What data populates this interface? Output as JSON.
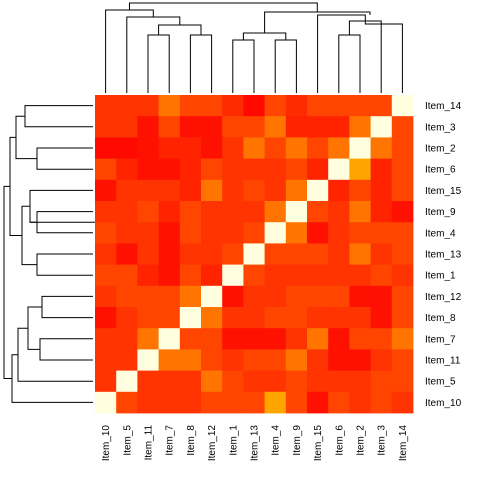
{
  "chart_data": {
    "type": "heatmap",
    "title": "",
    "xlabel": "",
    "ylabel": "",
    "legend": "none",
    "grid": false,
    "col_labels": [
      "Item_10",
      "Item_5",
      "Item_11",
      "Item_7",
      "Item_8",
      "Item_12",
      "Item_1",
      "Item_13",
      "Item_4",
      "Item_9",
      "Item_15",
      "Item_6",
      "Item_2",
      "Item_3",
      "Item_14"
    ],
    "row_labels": [
      "Item_14",
      "Item_3",
      "Item_2",
      "Item_6",
      "Item_15",
      "Item_9",
      "Item_4",
      "Item_13",
      "Item_1",
      "Item_12",
      "Item_8",
      "Item_7",
      "Item_11",
      "Item_5",
      "Item_10"
    ],
    "value_range": [
      0,
      1
    ],
    "values": [
      [
        0.3,
        0.3,
        0.3,
        0.5,
        0.4,
        0.4,
        0.25,
        0.05,
        0.4,
        0.25,
        0.4,
        0.4,
        0.4,
        0.4,
        1.0
      ],
      [
        0.3,
        0.3,
        0.1,
        0.4,
        0.1,
        0.1,
        0.4,
        0.4,
        0.5,
        0.2,
        0.2,
        0.2,
        0.5,
        1.0,
        0.4
      ],
      [
        0.05,
        0.05,
        0.1,
        0.2,
        0.2,
        0.1,
        0.3,
        0.5,
        0.4,
        0.5,
        0.4,
        0.5,
        1.0,
        0.5,
        0.4
      ],
      [
        0.4,
        0.2,
        0.1,
        0.1,
        0.2,
        0.4,
        0.3,
        0.3,
        0.3,
        0.4,
        0.2,
        1.0,
        0.6,
        0.2,
        0.4
      ],
      [
        0.1,
        0.3,
        0.3,
        0.3,
        0.2,
        0.5,
        0.3,
        0.4,
        0.3,
        0.5,
        1.0,
        0.2,
        0.4,
        0.2,
        0.4
      ],
      [
        0.3,
        0.3,
        0.4,
        0.2,
        0.4,
        0.3,
        0.3,
        0.3,
        0.5,
        1.0,
        0.4,
        0.3,
        0.5,
        0.2,
        0.1
      ],
      [
        0.4,
        0.3,
        0.3,
        0.1,
        0.4,
        0.3,
        0.3,
        0.4,
        1.0,
        0.5,
        0.1,
        0.3,
        0.4,
        0.4,
        0.4
      ],
      [
        0.3,
        0.1,
        0.3,
        0.1,
        0.3,
        0.3,
        0.4,
        1.0,
        0.4,
        0.4,
        0.4,
        0.3,
        0.5,
        0.3,
        0.4
      ],
      [
        0.4,
        0.4,
        0.2,
        0.1,
        0.4,
        0.2,
        1.0,
        0.4,
        0.3,
        0.3,
        0.3,
        0.3,
        0.3,
        0.4,
        0.3
      ],
      [
        0.3,
        0.4,
        0.4,
        0.4,
        0.5,
        1.0,
        0.1,
        0.3,
        0.3,
        0.4,
        0.4,
        0.4,
        0.1,
        0.1,
        0.4
      ],
      [
        0.1,
        0.3,
        0.4,
        0.4,
        1.0,
        0.5,
        0.3,
        0.3,
        0.4,
        0.4,
        0.3,
        0.3,
        0.3,
        0.1,
        0.4
      ],
      [
        0.3,
        0.3,
        0.5,
        1.0,
        0.4,
        0.4,
        0.1,
        0.1,
        0.1,
        0.3,
        0.5,
        0.1,
        0.4,
        0.4,
        0.5
      ],
      [
        0.3,
        0.3,
        1.0,
        0.5,
        0.5,
        0.4,
        0.3,
        0.4,
        0.4,
        0.5,
        0.3,
        0.1,
        0.1,
        0.3,
        0.4
      ],
      [
        0.3,
        1.0,
        0.3,
        0.3,
        0.3,
        0.5,
        0.4,
        0.3,
        0.3,
        0.4,
        0.3,
        0.3,
        0.3,
        0.4,
        0.4
      ],
      [
        1.0,
        0.4,
        0.3,
        0.3,
        0.3,
        0.4,
        0.4,
        0.4,
        0.6,
        0.4,
        0.1,
        0.4,
        0.3,
        0.4,
        0.3
      ]
    ]
  }
}
